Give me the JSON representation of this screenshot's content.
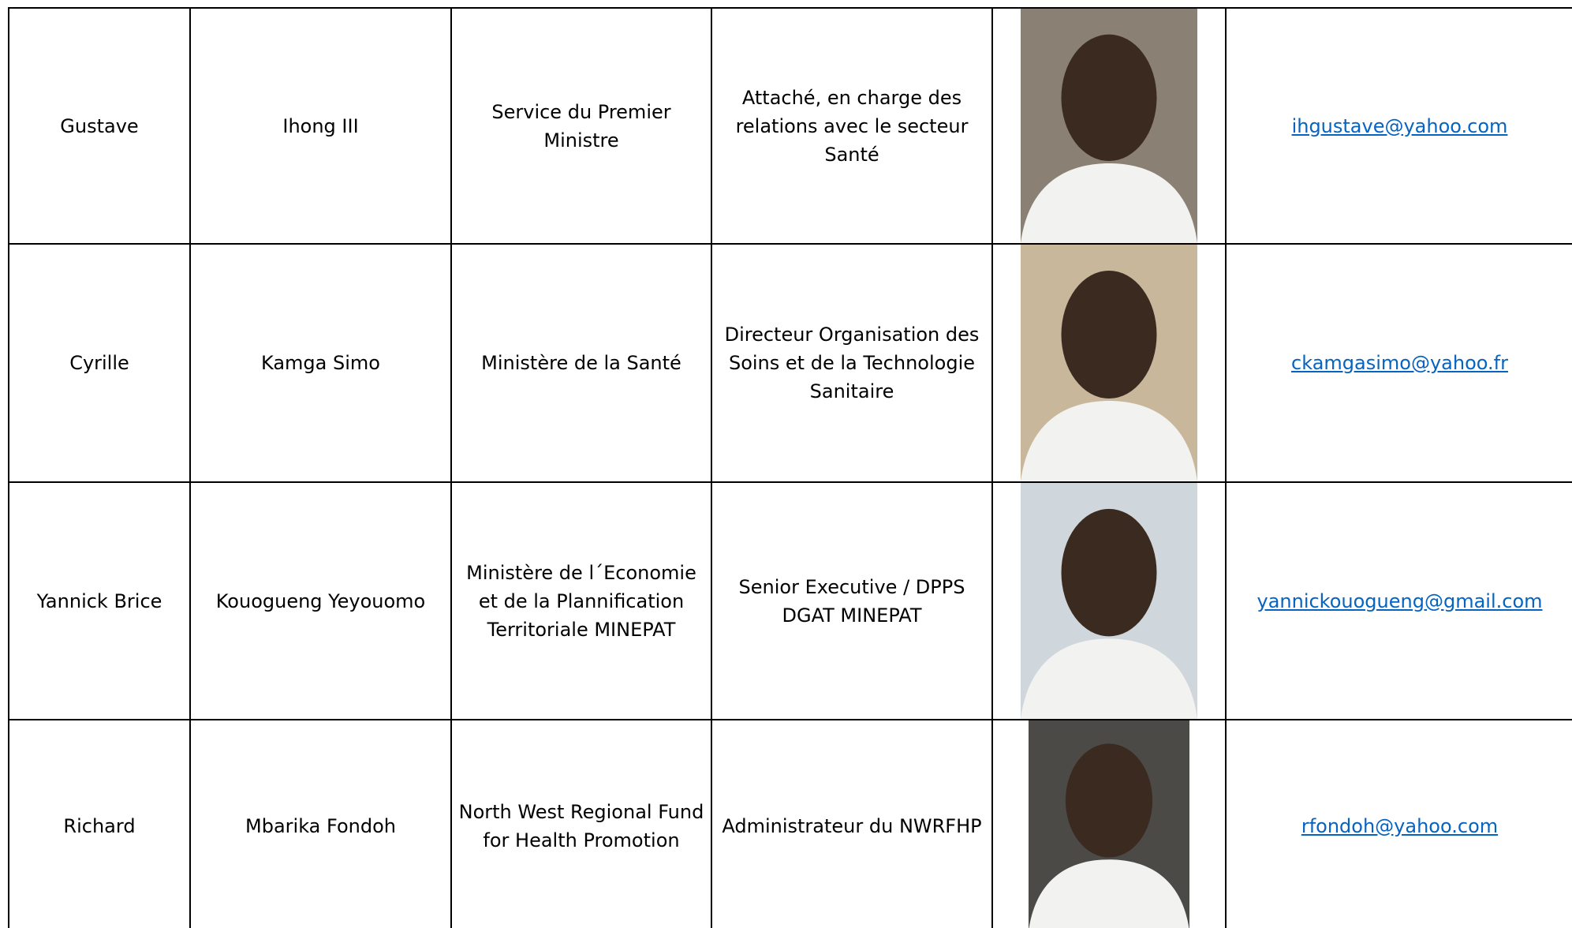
{
  "table": {
    "rows": [
      [
        "Gustave",
        "Ihong III",
        "Service du Premier Ministre",
        "Attaché, en charge des relations avec le secteur Santé",
        "ihgustave@yahoo.com"
      ],
      [
        "Cyrille",
        "Kamga Simo",
        "Ministère de la Santé",
        "Directeur Organisation des Soins et de la Technologie Sanitaire",
        "ckamgasimo@yahoo.fr"
      ],
      [
        "Yannick Brice",
        "Kouogueng Yeyouomo",
        "Ministère de l´Economie et de la Plannification Territoriale MINEPAT",
        "Senior Executive / DPPS DGAT MINEPAT",
        "yannickouogueng@gmail.com"
      ],
      [
        "Richard",
        "Mbarika Fondoh",
        "North West Regional Fund for Health Promotion",
        "Administrateur du NWRFHP",
        "rfondoh@yahoo.com"
      ]
    ]
  }
}
